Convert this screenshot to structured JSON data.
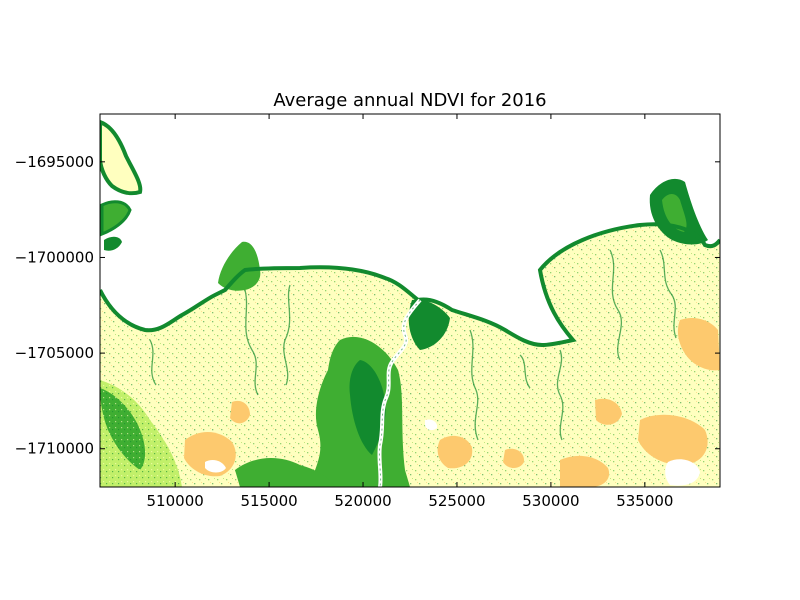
{
  "chart_data": {
    "type": "heatmap",
    "title": "Average annual NDVI for 2016",
    "xlabel": "",
    "ylabel": "",
    "x_ticks": [
      {
        "value": 510000,
        "label": "510000"
      },
      {
        "value": 515000,
        "label": "515000"
      },
      {
        "value": 520000,
        "label": "520000"
      },
      {
        "value": 525000,
        "label": "525000"
      },
      {
        "value": 530000,
        "label": "530000"
      },
      {
        "value": 535000,
        "label": "535000"
      }
    ],
    "y_ticks": [
      {
        "value": -1695000,
        "label": "−1695000"
      },
      {
        "value": -1700000,
        "label": "−1700000"
      },
      {
        "value": -1705000,
        "label": "−1705000"
      },
      {
        "value": -1710000,
        "label": "−1710000"
      }
    ],
    "xlim": [
      506000,
      539000
    ],
    "ylim": [
      -1712000,
      -1692500
    ],
    "grid": false,
    "legend": "none",
    "colormap": [
      "#ffffff",
      "#fdc96e",
      "#ffffbf",
      "#c2f06a",
      "#8ed44d",
      "#3fae32",
      "#128a2e"
    ]
  }
}
